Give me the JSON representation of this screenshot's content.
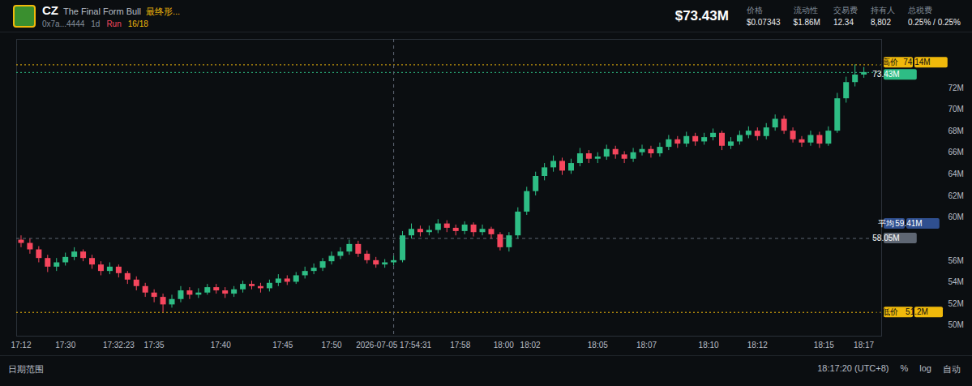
{
  "header": {
    "symbol": "CZ",
    "name": "The Final Form Bull",
    "tag": "最终形...",
    "address": "0x7a...4444",
    "age": "1d",
    "badge": "Run",
    "progress": "16/18",
    "market_cap": "$73.43M",
    "stats": [
      {
        "label": "价格",
        "value": "$0.07343"
      },
      {
        "label": "流动性",
        "value": "$1.86M"
      },
      {
        "label": "交易费",
        "value": "12.34"
      },
      {
        "label": "持有人",
        "value": "8,802"
      },
      {
        "label": "总税费",
        "value": "0.25% / 0.25%"
      }
    ]
  },
  "footer": {
    "left": "日期范围",
    "time": "18:17:20 (UTC+8)",
    "buttons": [
      "%",
      "log",
      "自动"
    ]
  },
  "chart_data": {
    "type": "candlestick",
    "x": [
      0,
      1,
      2,
      3,
      4,
      5,
      6,
      7,
      8,
      9,
      10,
      11,
      12,
      13,
      14,
      15,
      16,
      17,
      18,
      19,
      20,
      21,
      22,
      23,
      24,
      25,
      26,
      27,
      28,
      29,
      30,
      31,
      32,
      33,
      34,
      35,
      36,
      37,
      38,
      39,
      40,
      41,
      42,
      43,
      44,
      45,
      46,
      47,
      48,
      49,
      50,
      51,
      52,
      53,
      54,
      55,
      56,
      57,
      58,
      59,
      60,
      61,
      62,
      63,
      64,
      65,
      66,
      67,
      68,
      69,
      70,
      71,
      72,
      73,
      74,
      75,
      76,
      77,
      78,
      79,
      80,
      81,
      82,
      83,
      84,
      85,
      86,
      87,
      88,
      89,
      90,
      91,
      92,
      93,
      94,
      95
    ],
    "open": [
      57.9,
      57.6,
      57.0,
      56.2,
      55.4,
      55.8,
      56.3,
      56.8,
      56.2,
      55.6,
      55.0,
      55.4,
      54.8,
      54.2,
      53.6,
      53.0,
      52.6,
      51.9,
      52.4,
      53.2,
      52.8,
      53.0,
      53.5,
      53.2,
      52.9,
      53.3,
      53.8,
      53.6,
      53.4,
      53.9,
      54.3,
      54.0,
      54.6,
      55.0,
      55.3,
      55.9,
      56.4,
      56.8,
      57.5,
      56.6,
      56.0,
      55.6,
      55.8,
      56.0,
      58.3,
      58.9,
      58.6,
      58.8,
      59.4,
      59.0,
      58.7,
      59.3,
      58.6,
      58.9,
      58.4,
      57.2,
      58.3,
      60.5,
      62.4,
      63.8,
      64.6,
      65.2,
      64.3,
      65.0,
      65.9,
      65.4,
      65.6,
      66.3,
      65.8,
      65.4,
      66.0,
      66.3,
      65.9,
      66.5,
      67.2,
      66.8,
      67.5,
      67.0,
      67.4,
      67.8,
      66.6,
      67.0,
      67.6,
      68.0,
      67.5,
      68.3,
      69.1,
      68.0,
      67.2,
      66.9,
      67.6,
      66.8,
      68.0,
      71.0,
      72.5,
      73.2
    ],
    "high": [
      58.3,
      58.0,
      57.3,
      56.5,
      56.2,
      56.7,
      57.2,
      57.0,
      56.5,
      55.9,
      55.8,
      55.6,
      55.0,
      54.5,
      53.9,
      53.3,
      52.9,
      52.8,
      53.6,
      53.5,
      53.4,
      53.8,
      53.8,
      53.5,
      53.6,
      54.1,
      54.1,
      53.9,
      54.2,
      54.7,
      54.6,
      54.9,
      55.4,
      55.7,
      56.2,
      56.8,
      57.2,
      57.9,
      57.8,
      56.9,
      56.3,
      56.1,
      56.4,
      58.7,
      59.4,
      59.2,
      59.2,
      59.8,
      59.7,
      59.3,
      59.6,
      59.5,
      59.3,
      59.1,
      58.6,
      58.6,
      60.9,
      62.8,
      64.2,
      65.0,
      65.7,
      65.5,
      65.4,
      66.4,
      66.2,
      66.0,
      66.7,
      66.6,
      66.1,
      66.4,
      66.7,
      66.6,
      66.9,
      67.6,
      67.5,
      67.9,
      67.8,
      67.8,
      68.2,
      68.0,
      67.4,
      68.0,
      68.4,
      68.3,
      68.7,
      69.5,
      69.4,
      68.3,
      67.5,
      68.0,
      67.9,
      68.4,
      71.5,
      73.0,
      74.14,
      73.9
    ],
    "low": [
      57.2,
      56.6,
      55.8,
      54.9,
      55.0,
      55.5,
      56.0,
      55.9,
      55.2,
      54.6,
      54.7,
      54.4,
      53.8,
      53.2,
      52.6,
      52.1,
      51.2,
      51.6,
      52.1,
      52.4,
      52.5,
      52.8,
      52.9,
      52.5,
      52.6,
      53.0,
      53.3,
      53.0,
      53.1,
      53.6,
      53.7,
      53.8,
      54.3,
      54.7,
      55.0,
      55.6,
      56.1,
      56.5,
      56.3,
      55.7,
      55.3,
      55.3,
      55.5,
      55.8,
      58.0,
      58.2,
      58.3,
      58.5,
      58.6,
      58.3,
      58.4,
      58.2,
      58.3,
      58.0,
      56.9,
      56.8,
      58.0,
      60.2,
      62.0,
      63.4,
      64.2,
      63.9,
      64.0,
      64.7,
      65.0,
      65.0,
      65.3,
      65.4,
      65.0,
      65.1,
      65.7,
      65.5,
      65.6,
      66.2,
      66.4,
      66.5,
      66.6,
      66.7,
      67.1,
      66.2,
      66.3,
      66.7,
      67.3,
      67.1,
      67.2,
      68.0,
      67.7,
      66.9,
      66.5,
      66.6,
      66.4,
      66.6,
      67.8,
      70.6,
      72.1,
      72.9
    ],
    "close": [
      57.6,
      57.0,
      56.2,
      55.4,
      55.8,
      56.3,
      56.8,
      56.2,
      55.6,
      55.0,
      55.4,
      54.8,
      54.2,
      53.6,
      53.0,
      52.6,
      51.9,
      52.4,
      53.2,
      52.8,
      53.0,
      53.5,
      53.2,
      52.9,
      53.3,
      53.8,
      53.6,
      53.4,
      53.9,
      54.3,
      54.0,
      54.6,
      55.0,
      55.3,
      55.9,
      56.4,
      56.8,
      57.5,
      56.6,
      56.0,
      55.6,
      55.8,
      56.0,
      58.3,
      58.9,
      58.6,
      58.8,
      59.4,
      59.0,
      58.7,
      59.3,
      58.6,
      58.9,
      58.4,
      57.2,
      58.3,
      60.5,
      62.4,
      63.8,
      64.6,
      65.2,
      64.3,
      65.0,
      65.9,
      65.4,
      65.6,
      66.3,
      65.8,
      65.4,
      66.0,
      66.3,
      65.9,
      66.5,
      67.2,
      66.8,
      67.5,
      67.0,
      67.4,
      67.8,
      66.6,
      67.0,
      67.6,
      68.0,
      67.5,
      68.3,
      69.1,
      68.0,
      67.2,
      66.9,
      67.6,
      66.8,
      68.0,
      71.0,
      72.5,
      73.2,
      73.43
    ],
    "xlim": [
      -0.5,
      97
    ],
    "xticks": [
      {
        "value": 0,
        "label": "17:12"
      },
      {
        "value": 5,
        "label": "17:30"
      },
      {
        "value": 11,
        "label": "17:32:23"
      },
      {
        "value": 15,
        "label": "17:35"
      },
      {
        "value": 22.5,
        "label": "17:40"
      },
      {
        "value": 29.5,
        "label": "17:45"
      },
      {
        "value": 35,
        "label": "17:50"
      },
      {
        "value": 42,
        "label": "2026-07-05 17:54:31"
      },
      {
        "value": 49.5,
        "label": "17:58"
      },
      {
        "value": 54.4,
        "label": "18:00"
      },
      {
        "value": 57.4,
        "label": "18:02"
      },
      {
        "value": 65,
        "label": "18:05"
      },
      {
        "value": 70.5,
        "label": "18:07"
      },
      {
        "value": 77.5,
        "label": "18:10"
      },
      {
        "value": 83,
        "label": "18:12"
      },
      {
        "value": 90.5,
        "label": "18:15"
      },
      {
        "value": 95,
        "label": "18:17"
      }
    ],
    "ylim": [
      49,
      76.5
    ],
    "yticks": [
      {
        "value": 50,
        "label": "50M"
      },
      {
        "value": 52,
        "label": "52M"
      },
      {
        "value": 54,
        "label": "54M"
      },
      {
        "value": 56,
        "label": "56M"
      },
      {
        "value": 60,
        "label": "60M"
      },
      {
        "value": 62,
        "label": "62M"
      },
      {
        "value": 64,
        "label": "64M"
      },
      {
        "value": 66,
        "label": "66M"
      },
      {
        "value": 68,
        "label": "68M"
      },
      {
        "value": 70,
        "label": "70M"
      },
      {
        "value": 72,
        "label": "72M"
      }
    ],
    "grid": false,
    "color": {
      "up": "#2ebd85",
      "down": "#f6465d"
    },
    "reference_lines": [
      {
        "label": "最高价",
        "y": 74.14,
        "value_label": "74.14M",
        "color": "#f0b90b",
        "line_style": "dotted"
      },
      {
        "y": 73.43,
        "value_label": "73.43M",
        "color": "#2ebd85",
        "line_style": "dotted"
      },
      {
        "label": "平均",
        "y": 59.41,
        "value_label": "59.41M",
        "color": "#2f4f8f",
        "line_style": "none"
      },
      {
        "y": 58.05,
        "value_label": "58.05M",
        "color": "#5e6673",
        "line_style": "dashed"
      },
      {
        "label": "最低价",
        "y": 51.2,
        "value_label": "51.2M",
        "color": "#f0b90b",
        "line_style": "dotted"
      },
      {
        "x": 42,
        "color": "#5e6673",
        "line_style": "dashed"
      }
    ]
  }
}
